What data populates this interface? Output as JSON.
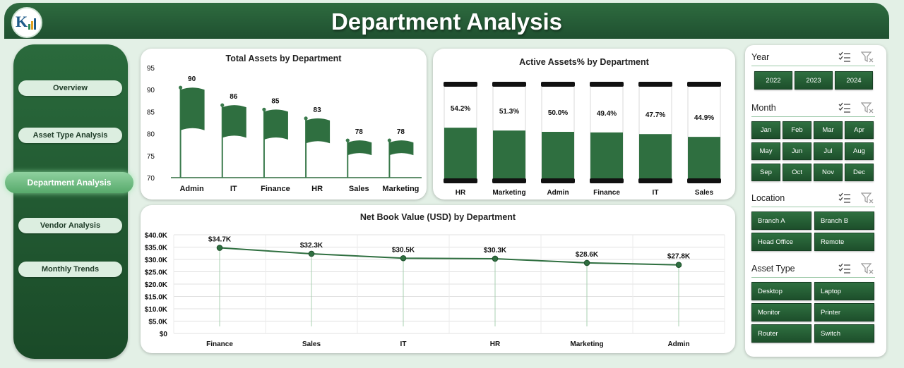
{
  "header": {
    "title": "Department Analysis"
  },
  "nav": [
    {
      "label": "Overview"
    },
    {
      "label": "Asset Type Analysis"
    },
    {
      "label": "Department Analysis"
    },
    {
      "label": "Vendor Analysis"
    },
    {
      "label": "Monthly Trends"
    }
  ],
  "colors": {
    "primary": "#2e6b3f",
    "dark": "#1a4a28",
    "accent": "#3a7a4c",
    "light": "#dceee0"
  },
  "charts": {
    "total_assets": {
      "title": "Total Assets by Department",
      "chart_data": {
        "type": "bar",
        "title": "Total Assets by Department",
        "categories": [
          "Admin",
          "IT",
          "Finance",
          "HR",
          "Sales",
          "Marketing"
        ],
        "values": [
          90,
          86,
          85,
          83,
          78,
          78
        ],
        "ylim": [
          70,
          95
        ],
        "yticks": [
          "95",
          "90",
          "85",
          "80",
          "75",
          "70"
        ],
        "value_labels": [
          "90",
          "86",
          "85",
          "83",
          "78",
          "78"
        ]
      }
    },
    "active_assets": {
      "title": "Active Assets% by Department",
      "chart_data": {
        "type": "bar",
        "title": "Active Assets% by Department",
        "categories": [
          "HR",
          "Marketing",
          "Admin",
          "Finance",
          "IT",
          "Sales"
        ],
        "values": [
          54.2,
          51.3,
          50.0,
          49.4,
          47.7,
          44.9
        ],
        "value_labels": [
          "54.2%",
          "51.3%",
          "50.0%",
          "49.4%",
          "47.7%",
          "44.9%"
        ]
      }
    },
    "net_book": {
      "title": "Net Book Value (USD) by Department",
      "chart_data": {
        "type": "line",
        "title": "Net Book Value (USD) by Department",
        "categories": [
          "Finance",
          "Sales",
          "IT",
          "HR",
          "Marketing",
          "Admin"
        ],
        "values": [
          34700,
          32300,
          30500,
          30300,
          28600,
          27800
        ],
        "ylim": [
          0,
          40000
        ],
        "yticks": [
          "$40.0K",
          "$35.0K",
          "$30.0K",
          "$25.0K",
          "$20.0K",
          "$15.0K",
          "$10.0K",
          "$5.0K",
          "$0"
        ],
        "value_labels": [
          "$34.7K",
          "$32.3K",
          "$30.5K",
          "$30.3K",
          "$28.6K",
          "$27.8K"
        ]
      }
    }
  },
  "slicers": {
    "year": {
      "title": "Year",
      "items": [
        "2022",
        "2023",
        "2024"
      ]
    },
    "month": {
      "title": "Month",
      "items": [
        "Jan",
        "Feb",
        "Mar",
        "Apr",
        "May",
        "Jun",
        "Jul",
        "Aug",
        "Sep",
        "Oct",
        "Nov",
        "Dec"
      ]
    },
    "location": {
      "title": "Location",
      "items": [
        "Branch A",
        "Branch B",
        "Head Office",
        "Remote"
      ]
    },
    "asset_type": {
      "title": "Asset Type",
      "items": [
        "Desktop",
        "Laptop",
        "Monitor",
        "Printer",
        "Router",
        "Switch"
      ]
    }
  }
}
